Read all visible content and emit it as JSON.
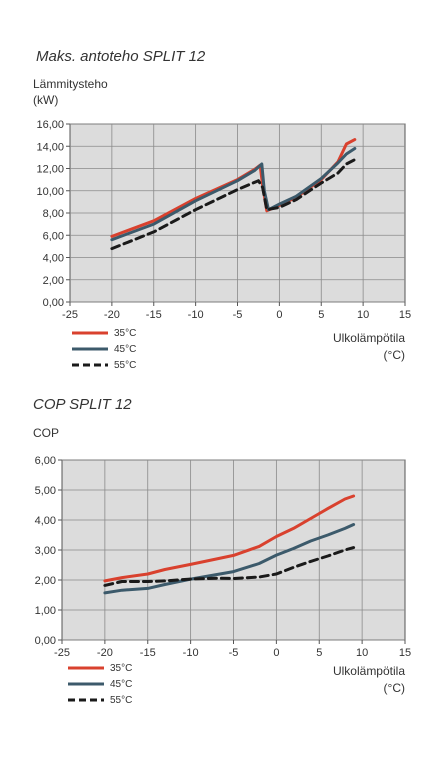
{
  "charts": [
    {
      "title": "Maks. antoteho SPLIT 12",
      "ylabel_line1": "Lämmitysteho",
      "ylabel_line2": "(kW)",
      "xlabel_line1": "Ulkolämpötila",
      "xlabel_line2": "(°C)"
    },
    {
      "title": "COP SPLIT 12",
      "ylabel_line1": "COP",
      "xlabel_line1": "Ulkolämpötila",
      "xlabel_line2": "(°C)"
    }
  ],
  "chart_data": [
    {
      "type": "line",
      "title": "Maks. antoteho SPLIT 12",
      "ylabel": "Lämmitysteho (kW)",
      "xlabel": "Ulkolämpötila (°C)",
      "xlim": [
        -25,
        15
      ],
      "ylim": [
        0,
        16
      ],
      "xticks": [
        -25,
        -20,
        -15,
        -10,
        -5,
        0,
        5,
        10,
        15
      ],
      "xtick_labels": [
        "-25",
        "-20",
        "-15",
        "-10",
        "-5",
        "0",
        "5",
        "10",
        "15"
      ],
      "yticks": [
        0,
        2,
        4,
        6,
        8,
        10,
        12,
        14,
        16
      ],
      "ytick_labels": [
        "0,00",
        "2,00",
        "4,00",
        "6,00",
        "8,00",
        "10,00",
        "12,00",
        "14,00",
        "16,00"
      ],
      "grid": true,
      "legend_position": "bottom-left",
      "series": [
        {
          "name": "35°C",
          "color": "#d9412e",
          "dash": "solid",
          "points": [
            [
              -20,
              5.9
            ],
            [
              -15,
              7.3
            ],
            [
              -10,
              9.3
            ],
            [
              -5,
              11.0
            ],
            [
              -3,
              11.9
            ],
            [
              -2.3,
              12.3
            ],
            [
              -2,
              10.5
            ],
            [
              -1.5,
              8.2
            ],
            [
              0,
              8.7
            ],
            [
              2,
              9.4
            ],
            [
              5,
              11.0
            ],
            [
              7,
              12.6
            ],
            [
              8,
              14.2
            ],
            [
              9,
              14.6
            ]
          ]
        },
        {
          "name": "45°C",
          "color": "#3c5a6b",
          "dash": "solid",
          "points": [
            [
              -20,
              5.6
            ],
            [
              -15,
              7.0
            ],
            [
              -10,
              9.1
            ],
            [
              -5,
              10.9
            ],
            [
              -3,
              11.8
            ],
            [
              -2.1,
              12.4
            ],
            [
              -1.8,
              10.0
            ],
            [
              -1.3,
              8.3
            ],
            [
              0,
              8.8
            ],
            [
              2,
              9.5
            ],
            [
              5,
              11.1
            ],
            [
              7,
              12.5
            ],
            [
              8,
              13.3
            ],
            [
              9,
              13.8
            ]
          ]
        },
        {
          "name": "55°C",
          "color": "#1a1a1a",
          "dash": "dashed",
          "points": [
            [
              -20,
              4.8
            ],
            [
              -15,
              6.3
            ],
            [
              -10,
              8.3
            ],
            [
              -5,
              10.1
            ],
            [
              -2.5,
              10.9
            ],
            [
              -2,
              10.3
            ],
            [
              -1.5,
              8.3
            ],
            [
              0,
              8.5
            ],
            [
              2,
              9.2
            ],
            [
              5,
              10.7
            ],
            [
              7,
              11.6
            ],
            [
              8,
              12.4
            ],
            [
              9,
              12.8
            ]
          ]
        }
      ]
    },
    {
      "type": "line",
      "title": "COP SPLIT 12",
      "ylabel": "COP",
      "xlabel": "Ulkolämpötila (°C)",
      "xlim": [
        -25,
        15
      ],
      "ylim": [
        0,
        6
      ],
      "xticks": [
        -25,
        -20,
        -15,
        -10,
        -5,
        0,
        5,
        10,
        15
      ],
      "xtick_labels": [
        "-25",
        "-20",
        "-15",
        "-10",
        "-5",
        "0",
        "5",
        "10",
        "15"
      ],
      "yticks": [
        0,
        1,
        2,
        3,
        4,
        5,
        6
      ],
      "ytick_labels": [
        "0,00",
        "1,00",
        "2,00",
        "3,00",
        "4,00",
        "5,00",
        "6,00"
      ],
      "grid": true,
      "legend_position": "bottom-left",
      "series": [
        {
          "name": "35°C",
          "color": "#d9412e",
          "dash": "solid",
          "points": [
            [
              -20,
              1.97
            ],
            [
              -18,
              2.08
            ],
            [
              -15,
              2.2
            ],
            [
              -13,
              2.35
            ],
            [
              -10,
              2.52
            ],
            [
              -7,
              2.7
            ],
            [
              -5,
              2.82
            ],
            [
              -2,
              3.12
            ],
            [
              0,
              3.45
            ],
            [
              2,
              3.72
            ],
            [
              4,
              4.05
            ],
            [
              6,
              4.38
            ],
            [
              8,
              4.7
            ],
            [
              9,
              4.8
            ]
          ]
        },
        {
          "name": "45°C",
          "color": "#3c5a6b",
          "dash": "solid",
          "points": [
            [
              -20,
              1.57
            ],
            [
              -18,
              1.66
            ],
            [
              -15,
              1.72
            ],
            [
              -13,
              1.85
            ],
            [
              -10,
              2.03
            ],
            [
              -7,
              2.18
            ],
            [
              -5,
              2.28
            ],
            [
              -2,
              2.55
            ],
            [
              0,
              2.83
            ],
            [
              2,
              3.05
            ],
            [
              4,
              3.3
            ],
            [
              6,
              3.5
            ],
            [
              8,
              3.72
            ],
            [
              9,
              3.85
            ]
          ]
        },
        {
          "name": "55°C",
          "color": "#1a1a1a",
          "dash": "dashed",
          "points": [
            [
              -20,
              1.82
            ],
            [
              -18,
              1.95
            ],
            [
              -15,
              1.95
            ],
            [
              -13,
              1.97
            ],
            [
              -10,
              2.03
            ],
            [
              -7,
              2.06
            ],
            [
              -5,
              2.05
            ],
            [
              -2,
              2.1
            ],
            [
              0,
              2.2
            ],
            [
              2,
              2.42
            ],
            [
              4,
              2.62
            ],
            [
              6,
              2.8
            ],
            [
              8,
              3.0
            ],
            [
              9,
              3.08
            ]
          ]
        }
      ]
    }
  ]
}
